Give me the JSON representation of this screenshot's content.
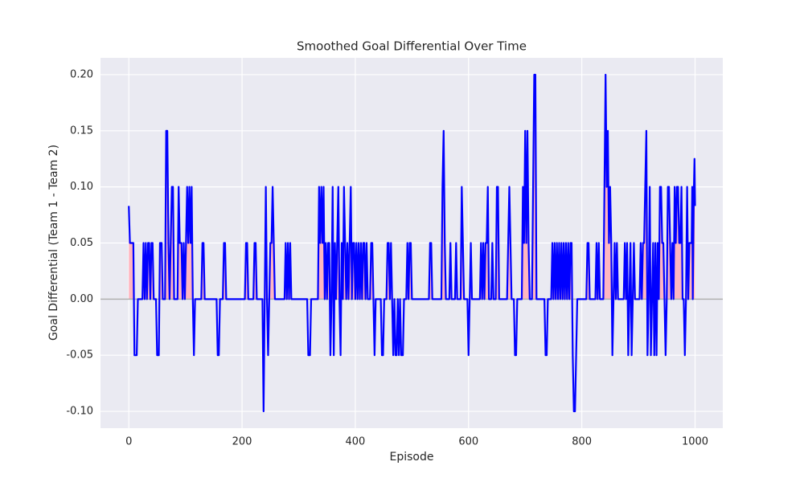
{
  "chart_data": {
    "type": "line",
    "title": "Smoothed Goal Differential Over Time",
    "x_label": "Episode",
    "y_label": "Goal Differential (Team 1 - Team 2)",
    "xlim": [
      -50,
      1049
    ],
    "ylim": [
      -0.115,
      0.215
    ],
    "xticks": [
      0,
      200,
      400,
      600,
      800,
      1000
    ],
    "yticks": [
      {
        "value": -0.1,
        "label": "-0.10"
      },
      -0.05,
      {
        "value": 0,
        "label": "0.00"
      },
      0.05,
      {
        "value": 0.1,
        "label": "0.10"
      },
      0.15,
      {
        "value": 0.2,
        "label": "0.20"
      }
    ],
    "grid": true,
    "reference_line": 0,
    "reference_color": "#b0b0b0",
    "fill_positive_color": "#ffb6c1",
    "x": [
      0,
      2,
      8,
      10,
      14,
      16,
      24,
      26,
      28,
      30,
      32,
      34,
      36,
      38,
      40,
      42,
      44,
      48,
      50,
      53,
      55,
      58,
      60,
      64,
      66,
      68,
      70,
      72,
      74,
      76,
      78,
      80,
      86,
      88,
      90,
      93,
      95,
      97,
      99,
      101,
      103,
      105,
      107,
      109,
      111,
      113,
      115,
      117,
      128,
      130,
      132,
      134,
      155,
      157,
      159,
      161,
      166,
      168,
      170,
      172,
      205,
      207,
      209,
      211,
      220,
      222,
      224,
      226,
      236,
      238,
      240,
      242,
      244,
      246,
      248,
      250,
      252,
      254,
      256,
      258,
      275,
      277,
      279,
      281,
      283,
      285,
      287,
      315,
      317,
      320,
      322,
      334,
      336,
      338,
      340,
      342,
      344,
      346,
      348,
      350,
      352,
      354,
      356,
      358,
      360,
      362,
      364,
      366,
      368,
      370,
      372,
      374,
      376,
      378,
      380,
      382,
      384,
      386,
      388,
      390,
      392,
      394,
      396,
      398,
      400,
      402,
      404,
      406,
      408,
      410,
      412,
      414,
      416,
      418,
      420,
      422,
      426,
      428,
      430,
      432,
      434,
      436,
      445,
      447,
      449,
      451,
      455,
      457,
      459,
      461,
      463,
      465,
      467,
      469,
      471,
      473,
      475,
      477,
      479,
      481,
      484,
      486,
      490,
      492,
      494,
      496,
      498,
      500,
      530,
      532,
      534,
      536,
      552,
      554,
      556,
      558,
      560,
      566,
      568,
      570,
      576,
      578,
      580,
      586,
      588,
      590,
      592,
      598,
      600,
      602,
      604,
      606,
      620,
      622,
      624,
      626,
      628,
      630,
      632,
      634,
      636,
      640,
      642,
      644,
      648,
      650,
      652,
      654,
      668,
      670,
      672,
      674,
      676,
      680,
      682,
      684,
      686,
      694,
      696,
      698,
      700,
      702,
      704,
      706,
      708,
      712,
      714,
      716,
      718,
      720,
      734,
      736,
      738,
      740,
      746,
      748,
      750,
      752,
      754,
      756,
      758,
      760,
      762,
      764,
      766,
      768,
      770,
      772,
      774,
      776,
      778,
      780,
      782,
      784,
      786,
      788,
      790,
      792,
      808,
      810,
      812,
      814,
      824,
      826,
      828,
      830,
      832,
      838,
      840,
      842,
      844,
      846,
      848,
      850,
      852,
      854,
      856,
      858,
      860,
      862,
      864,
      874,
      876,
      878,
      880,
      882,
      884,
      886,
      888,
      890,
      892,
      894,
      902,
      904,
      906,
      908,
      910,
      912,
      914,
      916,
      918,
      920,
      922,
      924,
      926,
      928,
      930,
      932,
      934,
      936,
      938,
      940,
      942,
      944,
      946,
      948,
      950,
      952,
      954,
      956,
      958,
      960,
      962,
      964,
      966,
      968,
      970,
      972,
      974,
      976,
      978,
      980,
      982,
      984,
      986,
      988,
      990,
      994,
      995,
      996,
      998,
      999,
      1000
    ],
    "series": [
      {
        "color": "#0000ff",
        "values": [
          0.083,
          0.05,
          0.05,
          -0.05,
          -0.05,
          0,
          0,
          0.05,
          0,
          0.05,
          0,
          0.05,
          0.05,
          0,
          0.05,
          0.05,
          0,
          0,
          -0.05,
          -0.05,
          0.05,
          0.05,
          0,
          0,
          0.15,
          0.15,
          0.05,
          0,
          0.05,
          0.1,
          0.1,
          0,
          0,
          0.1,
          0.05,
          0.05,
          0,
          0.05,
          0,
          0.05,
          0.1,
          0.05,
          0.1,
          0.05,
          0.1,
          0,
          -0.05,
          0,
          0,
          0.05,
          0.05,
          0,
          0,
          -0.05,
          -0.05,
          0,
          0,
          0.05,
          0.05,
          0,
          0,
          0.05,
          0.05,
          0,
          0,
          0.05,
          0.05,
          0,
          0,
          -0.1,
          0,
          0.1,
          0,
          -0.05,
          0,
          0.05,
          0.05,
          0.1,
          0.05,
          0,
          0,
          0.05,
          0,
          0.05,
          0,
          0.05,
          0,
          0,
          -0.05,
          -0.05,
          0,
          0,
          0.1,
          0.05,
          0.1,
          0.05,
          0.1,
          0,
          0.05,
          0,
          0.05,
          0.05,
          -0.05,
          0,
          0.1,
          -0.05,
          0.05,
          0,
          0.05,
          0.1,
          0,
          -0.05,
          0.05,
          0,
          0.1,
          0.05,
          0,
          0.05,
          0,
          0.05,
          0.1,
          0,
          0.05,
          0.05,
          0,
          0.05,
          0,
          0.05,
          0,
          0.05,
          0,
          0.05,
          0.05,
          0,
          0.05,
          0,
          0,
          0.05,
          0.05,
          0,
          -0.05,
          0,
          0,
          -0.05,
          -0.05,
          0,
          0,
          0.05,
          0.05,
          0,
          0.05,
          0,
          -0.05,
          0,
          -0.05,
          -0.05,
          0,
          -0.05,
          0,
          -0.05,
          -0.05,
          0,
          0,
          0.05,
          0,
          0.05,
          0.05,
          0,
          0,
          0.05,
          0.05,
          0,
          0,
          0.1,
          0.15,
          0.05,
          0,
          0,
          0.05,
          0,
          0,
          0.05,
          0,
          0,
          0.1,
          0.05,
          0,
          0,
          -0.05,
          0,
          0.05,
          0,
          0,
          0.05,
          0,
          0.05,
          0,
          0.05,
          0.05,
          0.1,
          0,
          0,
          0.05,
          0,
          0,
          0.1,
          0.1,
          0,
          0,
          0.05,
          0.1,
          0.05,
          0,
          0,
          -0.05,
          -0.05,
          0,
          0,
          0.1,
          0.05,
          0.15,
          0.05,
          0.15,
          0.05,
          0,
          0,
          0.1,
          0.2,
          0.2,
          0,
          0,
          -0.05,
          -0.05,
          0,
          0,
          0.05,
          0,
          0.05,
          0,
          0.05,
          0,
          0.05,
          0,
          0.05,
          0,
          0.05,
          0,
          0.05,
          0,
          0.05,
          0,
          0.05,
          0.05,
          -0.05,
          -0.1,
          -0.1,
          -0.05,
          0,
          0,
          0.05,
          0.05,
          0,
          0,
          0.05,
          0,
          0.05,
          0,
          0,
          0.1,
          0.2,
          0.1,
          0.15,
          0.05,
          0.1,
          0.05,
          -0.05,
          0,
          0.05,
          0,
          0.05,
          0,
          0,
          0.05,
          0,
          0.05,
          -0.05,
          0,
          0.05,
          -0.05,
          0,
          0.05,
          0,
          0,
          0.05,
          0,
          0.05,
          0.05,
          0.1,
          0.15,
          -0.05,
          0,
          0.1,
          -0.05,
          0,
          0.05,
          -0.05,
          0.05,
          -0.05,
          0.05,
          0,
          0.1,
          0.1,
          0.05,
          0.05,
          0,
          -0.05,
          0,
          0.1,
          0.1,
          0.05,
          0,
          0.05,
          0,
          0.1,
          0.05,
          0.1,
          0.1,
          0.05,
          0.05,
          0.1,
          0,
          0,
          -0.05,
          0,
          0.1,
          0,
          0.05,
          0.05,
          0.1,
          0,
          0.1,
          0.125,
          0.083
        ]
      }
    ]
  }
}
